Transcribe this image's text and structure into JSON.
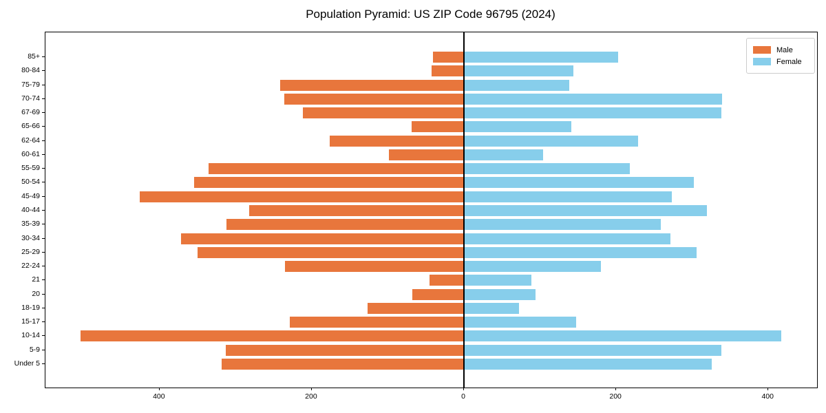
{
  "title": "Population Pyramid: US ZIP Code 96795 (2024)",
  "legend": {
    "male_label": "Male",
    "female_label": "Female",
    "position": "upper right"
  },
  "colors": {
    "male": "#E8763C",
    "female": "#87CEEB",
    "axis": "#000000",
    "legend_border": "#cccccc",
    "background": "#ffffff"
  },
  "chart_data": {
    "type": "bar",
    "subtype": "population-pyramid",
    "orientation": "horizontal",
    "title": "Population Pyramid: US ZIP Code 96795 (2024)",
    "categories": [
      "85+",
      "80-84",
      "75-79",
      "70-74",
      "67-69",
      "65-66",
      "62-64",
      "60-61",
      "55-59",
      "50-54",
      "45-49",
      "40-44",
      "35-39",
      "30-34",
      "25-29",
      "22-24",
      "21",
      "20",
      "18-19",
      "15-17",
      "10-14",
      "5-9",
      "Under 5"
    ],
    "series": [
      {
        "name": "Male",
        "side": "left",
        "color": "#E8763C",
        "values": [
          41,
          43,
          242,
          236,
          212,
          69,
          176,
          99,
          336,
          355,
          426,
          282,
          312,
          372,
          350,
          235,
          45,
          68,
          127,
          229,
          504,
          313,
          318
        ]
      },
      {
        "name": "Female",
        "side": "right",
        "color": "#87CEEB",
        "values": [
          203,
          144,
          138,
          339,
          338,
          141,
          229,
          104,
          218,
          302,
          273,
          319,
          259,
          271,
          306,
          180,
          89,
          94,
          72,
          147,
          417,
          338,
          326
        ]
      }
    ],
    "x_ticks": [
      -400,
      -200,
      0,
      200,
      400
    ],
    "x_tick_labels": [
      "400",
      "200",
      "0",
      "200",
      "400"
    ],
    "xlim": [
      -550,
      464
    ],
    "grid": false,
    "legend_position": "upper right"
  }
}
